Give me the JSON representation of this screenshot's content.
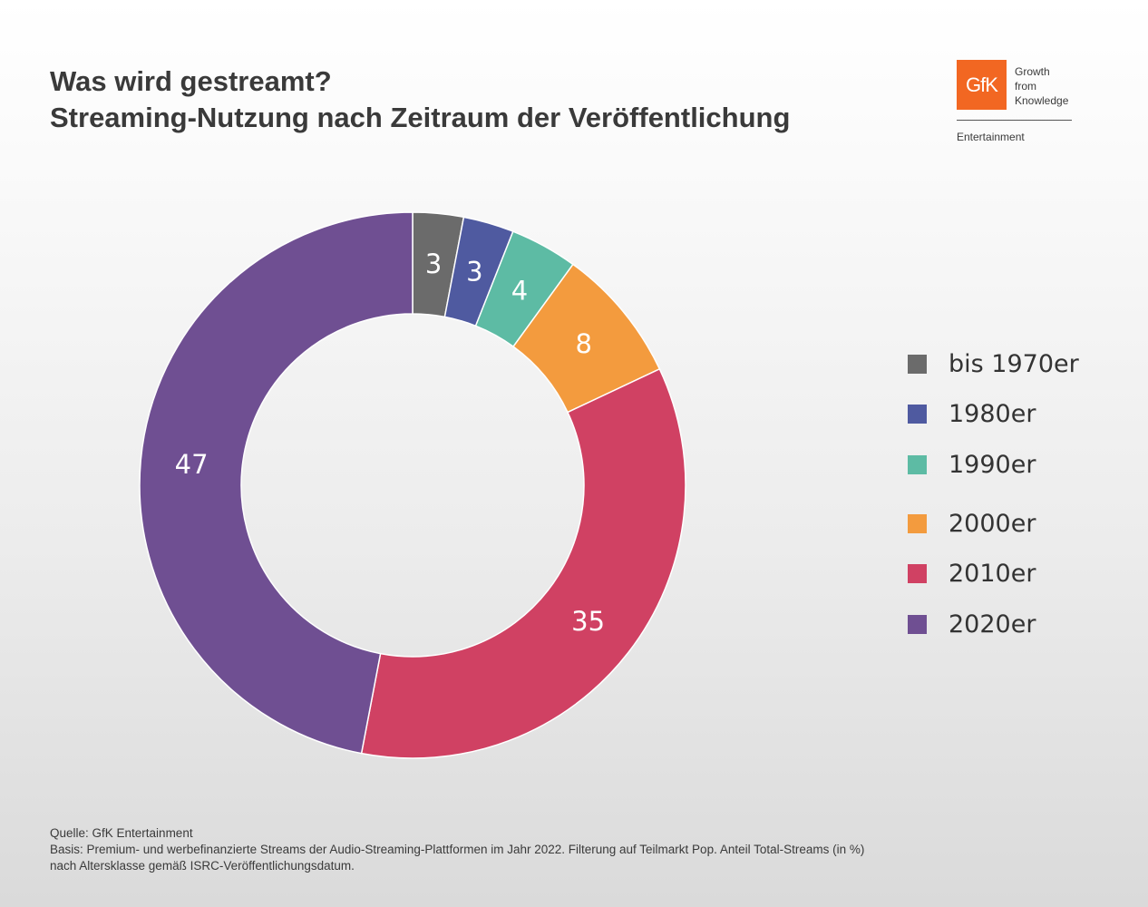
{
  "title_line1": "Was wird gestreamt?",
  "title_line2": "Streaming-Nutzung nach Zeitraum der Veröffentlichung",
  "logo": {
    "brand": "GfK",
    "tagline": [
      "Growth",
      "from",
      "Knowledge"
    ],
    "subtitle": "Entertainment",
    "color": "#f26722"
  },
  "chart_data": {
    "type": "pie",
    "variant": "donut",
    "title": "",
    "legend_position": "right",
    "slices": [
      {
        "label": "bis 1970er",
        "value": 3,
        "color": "#6b6b6b"
      },
      {
        "label": "1980er",
        "value": 3,
        "color": "#4f5aa0"
      },
      {
        "label": "1990er",
        "value": 4,
        "color": "#5dbba4"
      },
      {
        "label": "2000er",
        "value": 8,
        "color": "#f39b3e"
      },
      {
        "label": "2010er",
        "value": 35,
        "color": "#d04163"
      },
      {
        "label": "2020er",
        "value": 47,
        "color": "#6f4f92"
      }
    ]
  },
  "footnote": {
    "line1": "Quelle: GfK Entertainment",
    "line2": "Basis: Premium- und werbefinanzierte Streams der Audio-Streaming-Plattformen im Jahr 2022. Filterung auf Teilmarkt Pop. Anteil Total-Streams (in %)",
    "line3": "nach Altersklasse gemäß ISRC-Veröffentlichungsdatum."
  }
}
